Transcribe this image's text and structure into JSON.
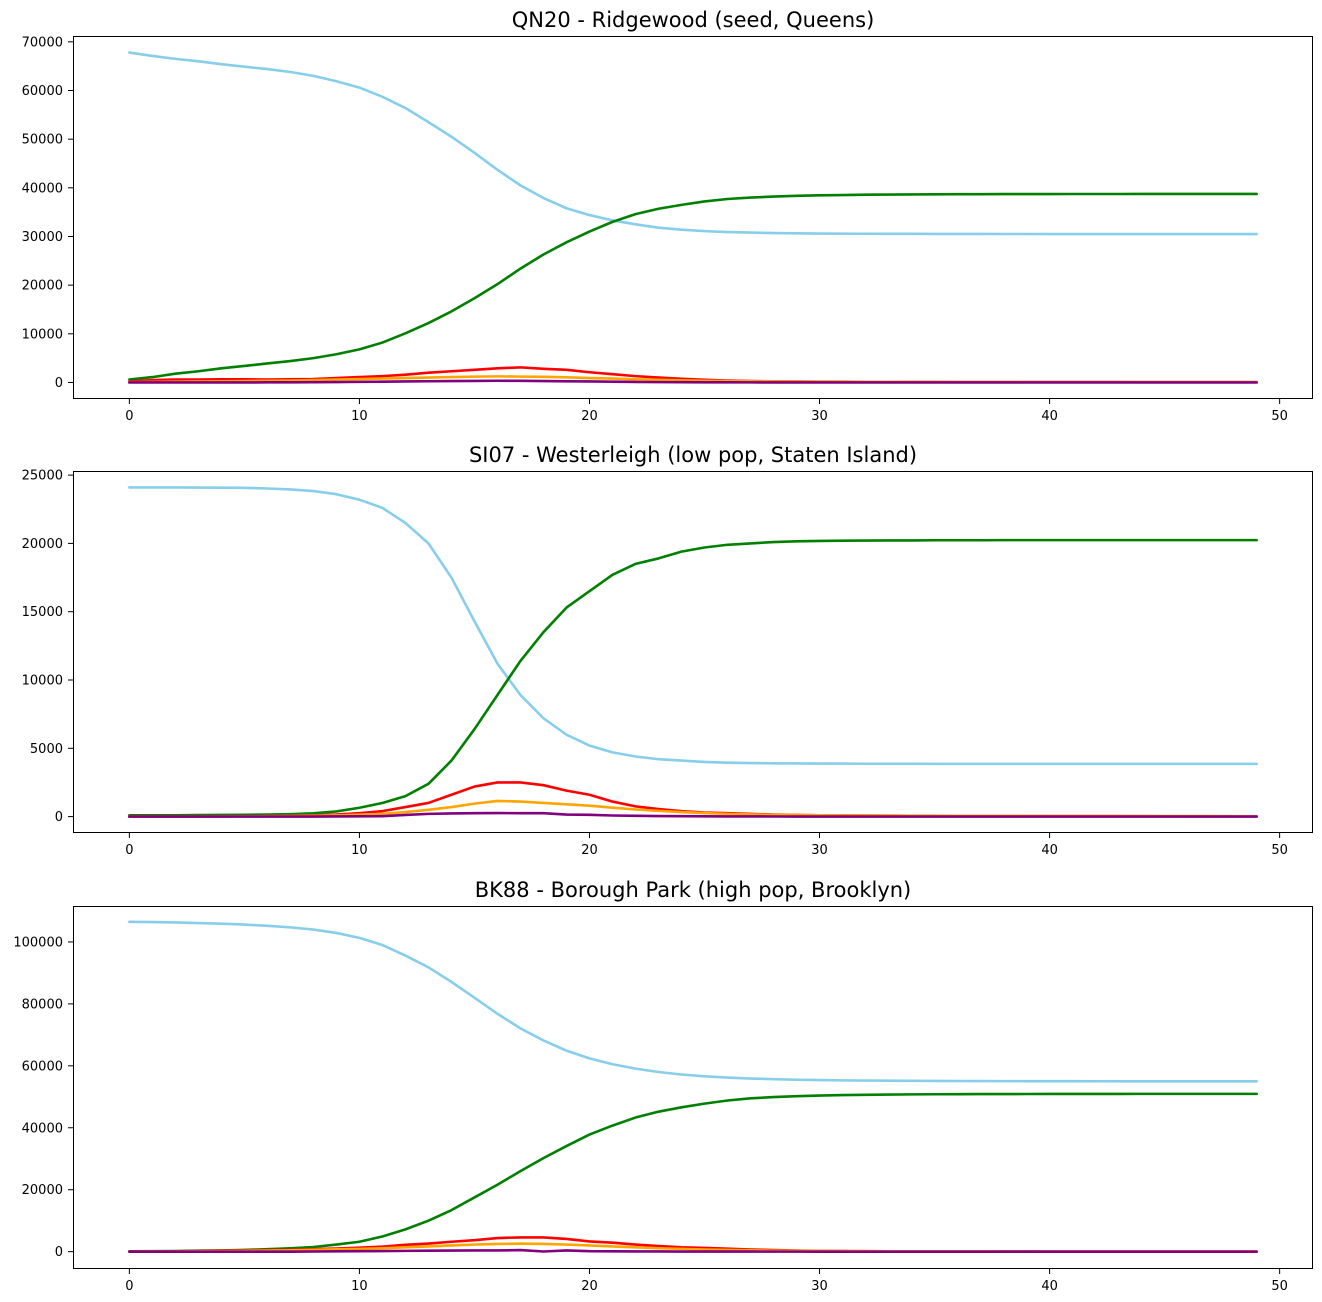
{
  "chart_data": [
    {
      "type": "line",
      "title": "QN20 - Ridgewood (seed, Queens)",
      "xlabel": "",
      "ylabel": "",
      "xlim": [
        -2.45,
        51.45
      ],
      "ylim": [
        -3400,
        71200
      ],
      "xticks": [
        0,
        10,
        20,
        30,
        40,
        50
      ],
      "xtick_labels": [
        "0",
        "10",
        "20",
        "30",
        "40",
        "50"
      ],
      "yticks": [
        0,
        10000,
        20000,
        30000,
        40000,
        50000,
        60000,
        70000
      ],
      "ytick_labels": [
        "0",
        "10000",
        "20000",
        "30000",
        "40000",
        "50000",
        "60000",
        "70000"
      ],
      "grid": false,
      "legend": "none",
      "x": [
        0,
        1,
        2,
        3,
        4,
        5,
        6,
        7,
        8,
        9,
        10,
        11,
        12,
        13,
        14,
        15,
        16,
        17,
        18,
        19,
        20,
        21,
        22,
        23,
        24,
        25,
        26,
        27,
        28,
        29,
        30,
        31,
        32,
        33,
        34,
        35,
        36,
        37,
        38,
        39,
        40,
        41,
        42,
        43,
        44,
        45,
        46,
        47,
        48,
        49
      ],
      "series": [
        {
          "color": "#87ceeb",
          "values": [
            67800,
            67100,
            66500,
            66000,
            65400,
            64900,
            64400,
            63800,
            63000,
            61900,
            60600,
            58700,
            56400,
            53500,
            50500,
            47200,
            43700,
            40500,
            37900,
            35800,
            34400,
            33300,
            32500,
            31800,
            31400,
            31100,
            30900,
            30800,
            30700,
            30650,
            30600,
            30580,
            30560,
            30550,
            30540,
            30530,
            30520,
            30520,
            30510,
            30510,
            30500,
            30500,
            30500,
            30500,
            30500,
            30500,
            30500,
            30500,
            30500,
            30500
          ]
        },
        {
          "color": "#008000",
          "values": [
            600,
            1100,
            1800,
            2300,
            2900,
            3400,
            3900,
            4400,
            5000,
            5800,
            6800,
            8200,
            10100,
            12200,
            14600,
            17300,
            20200,
            23400,
            26300,
            28800,
            31000,
            33000,
            34600,
            35700,
            36500,
            37200,
            37700,
            38000,
            38200,
            38350,
            38450,
            38520,
            38580,
            38620,
            38650,
            38670,
            38690,
            38700,
            38710,
            38720,
            38720,
            38730,
            38730,
            38730,
            38740,
            38740,
            38740,
            38740,
            38740,
            38740
          ]
        },
        {
          "color": "#ff0000",
          "values": [
            200,
            500,
            600,
            600,
            650,
            650,
            600,
            650,
            700,
            900,
            1100,
            1300,
            1600,
            2000,
            2300,
            2600,
            2900,
            3100,
            2800,
            2600,
            2100,
            1700,
            1300,
            1000,
            750,
            550,
            400,
            300,
            250,
            200,
            170,
            150,
            130,
            120,
            110,
            100,
            95,
            90,
            85,
            80,
            78,
            76,
            74,
            72,
            70,
            68,
            66,
            64,
            62,
            60
          ]
        },
        {
          "color": "#ffa500",
          "values": [
            50,
            100,
            150,
            200,
            250,
            300,
            350,
            400,
            500,
            600,
            700,
            800,
            900,
            1000,
            1100,
            1200,
            1250,
            1200,
            1150,
            1050,
            900,
            800,
            650,
            550,
            450,
            350,
            300,
            250,
            200,
            180,
            160,
            150,
            140,
            130,
            120,
            115,
            110,
            105,
            100,
            95,
            90,
            88,
            86,
            84,
            82,
            80,
            78,
            76,
            74,
            72
          ]
        },
        {
          "color": "#800080",
          "values": [
            0,
            0,
            0,
            0,
            0,
            0,
            20,
            30,
            50,
            80,
            120,
            160,
            200,
            250,
            280,
            320,
            350,
            330,
            280,
            240,
            200,
            150,
            100,
            70,
            50,
            30,
            20,
            15,
            10,
            8,
            6,
            5,
            4,
            3,
            2,
            2,
            1,
            1,
            1,
            1,
            0,
            0,
            0,
            0,
            0,
            0,
            0,
            0,
            0,
            0
          ]
        }
      ]
    },
    {
      "type": "line",
      "title": "SI07 - Westerleigh (low pop, Staten Island)",
      "xlabel": "",
      "ylabel": "",
      "xlim": [
        -2.45,
        51.45
      ],
      "ylim": [
        -1200,
        25300
      ],
      "xticks": [
        0,
        10,
        20,
        30,
        40,
        50
      ],
      "xtick_labels": [
        "0",
        "10",
        "20",
        "30",
        "40",
        "50"
      ],
      "yticks": [
        0,
        5000,
        10000,
        15000,
        20000,
        25000
      ],
      "ytick_labels": [
        "0",
        "5000",
        "10000",
        "15000",
        "20000",
        "25000"
      ],
      "grid": false,
      "legend": "none",
      "x": [
        0,
        1,
        2,
        3,
        4,
        5,
        6,
        7,
        8,
        9,
        10,
        11,
        12,
        13,
        14,
        15,
        16,
        17,
        18,
        19,
        20,
        21,
        22,
        23,
        24,
        25,
        26,
        27,
        28,
        29,
        30,
        31,
        32,
        33,
        34,
        35,
        36,
        37,
        38,
        39,
        40,
        41,
        42,
        43,
        44,
        45,
        46,
        47,
        48,
        49
      ],
      "series": [
        {
          "color": "#87ceeb",
          "values": [
            24100,
            24100,
            24100,
            24090,
            24080,
            24070,
            24020,
            23950,
            23830,
            23600,
            23200,
            22600,
            21500,
            20000,
            17500,
            14300,
            11200,
            8900,
            7200,
            6000,
            5200,
            4700,
            4400,
            4200,
            4100,
            4000,
            3950,
            3920,
            3900,
            3890,
            3880,
            3880,
            3870,
            3870,
            3870,
            3860,
            3860,
            3860,
            3860,
            3860,
            3860,
            3860,
            3860,
            3860,
            3860,
            3860,
            3860,
            3860,
            3860,
            3860
          ]
        },
        {
          "color": "#008000",
          "values": [
            100,
            100,
            100,
            110,
            120,
            130,
            150,
            180,
            240,
            380,
            650,
            1000,
            1500,
            2400,
            4100,
            6400,
            8900,
            11400,
            13500,
            15300,
            16500,
            17700,
            18500,
            18900,
            19400,
            19700,
            19900,
            20000,
            20100,
            20150,
            20180,
            20200,
            20210,
            20220,
            20220,
            20230,
            20230,
            20230,
            20240,
            20240,
            20240,
            20240,
            20240,
            20240,
            20240,
            20240,
            20240,
            20240,
            20240,
            20240
          ]
        },
        {
          "color": "#ff0000",
          "values": [
            0,
            0,
            0,
            10,
            20,
            30,
            40,
            60,
            90,
            150,
            250,
            400,
            700,
            1000,
            1600,
            2200,
            2500,
            2500,
            2300,
            1900,
            1600,
            1100,
            750,
            550,
            400,
            300,
            250,
            200,
            150,
            120,
            100,
            90,
            80,
            70,
            60,
            55,
            50,
            45,
            40,
            38,
            36,
            34,
            32,
            30,
            28,
            26,
            24,
            22,
            20,
            18
          ]
        },
        {
          "color": "#ffa500",
          "values": [
            0,
            0,
            0,
            0,
            10,
            20,
            30,
            40,
            60,
            90,
            140,
            200,
            330,
            500,
            700,
            950,
            1150,
            1100,
            1000,
            900,
            800,
            650,
            520,
            420,
            330,
            260,
            200,
            160,
            130,
            110,
            100,
            90,
            80,
            75,
            70,
            65,
            60,
            58,
            56,
            54,
            52,
            50,
            48,
            46,
            44,
            42,
            40,
            38,
            36,
            34
          ]
        },
        {
          "color": "#800080",
          "values": [
            0,
            0,
            0,
            0,
            0,
            0,
            0,
            0,
            0,
            10,
            20,
            30,
            120,
            200,
            230,
            250,
            260,
            250,
            250,
            150,
            130,
            80,
            60,
            40,
            30,
            20,
            15,
            10,
            8,
            6,
            5,
            4,
            3,
            2,
            2,
            1,
            1,
            1,
            1,
            0,
            0,
            0,
            0,
            0,
            0,
            0,
            0,
            0,
            0,
            0
          ]
        }
      ]
    },
    {
      "type": "line",
      "title": "BK88 - Borough Park (high pop, Brooklyn)",
      "xlabel": "",
      "ylabel": "",
      "xlim": [
        -2.45,
        51.45
      ],
      "ylim": [
        -5600,
        111600
      ],
      "xticks": [
        0,
        10,
        20,
        30,
        40,
        50
      ],
      "xtick_labels": [
        "0",
        "10",
        "20",
        "30",
        "40",
        "50"
      ],
      "yticks": [
        0,
        20000,
        40000,
        60000,
        80000,
        100000
      ],
      "ytick_labels": [
        "0",
        "20000",
        "40000",
        "60000",
        "80000",
        "100000"
      ],
      "grid": false,
      "legend": "none",
      "x": [
        0,
        1,
        2,
        3,
        4,
        5,
        6,
        7,
        8,
        9,
        10,
        11,
        12,
        13,
        14,
        15,
        16,
        17,
        18,
        19,
        20,
        21,
        22,
        23,
        24,
        25,
        26,
        27,
        28,
        29,
        30,
        31,
        32,
        33,
        34,
        35,
        36,
        37,
        38,
        39,
        40,
        41,
        42,
        43,
        44,
        45,
        46,
        47,
        48,
        49
      ],
      "series": [
        {
          "color": "#87ceeb",
          "values": [
            106500,
            106400,
            106300,
            106100,
            105900,
            105600,
            105200,
            104700,
            104000,
            102900,
            101300,
            99000,
            95600,
            91800,
            87100,
            82000,
            76800,
            72100,
            68200,
            64900,
            62400,
            60500,
            59100,
            58000,
            57200,
            56600,
            56200,
            55900,
            55700,
            55500,
            55400,
            55300,
            55250,
            55200,
            55150,
            55120,
            55100,
            55080,
            55060,
            55050,
            55040,
            55030,
            55020,
            55010,
            55000,
            55000,
            55000,
            55000,
            55000,
            55000
          ]
        },
        {
          "color": "#008000",
          "values": [
            100,
            150,
            200,
            300,
            400,
            550,
            800,
            1100,
            1500,
            2300,
            3200,
            4900,
            7200,
            10000,
            13400,
            17500,
            21600,
            26000,
            30200,
            34100,
            37800,
            40700,
            43300,
            45200,
            46600,
            47800,
            48800,
            49500,
            49900,
            50200,
            50400,
            50550,
            50650,
            50720,
            50780,
            50820,
            50850,
            50870,
            50890,
            50900,
            50910,
            50920,
            50930,
            50930,
            50940,
            50940,
            50940,
            50940,
            50940,
            50940
          ]
        },
        {
          "color": "#ff0000",
          "values": [
            0,
            50,
            100,
            200,
            300,
            400,
            500,
            600,
            800,
            1000,
            1300,
            1600,
            2200,
            2600,
            3200,
            3700,
            4400,
            4600,
            4600,
            4100,
            3300,
            2900,
            2300,
            1800,
            1400,
            1200,
            950,
            700,
            500,
            350,
            250,
            200,
            150,
            120,
            100,
            90,
            80,
            70,
            60,
            55,
            50,
            45,
            40,
            38,
            36,
            34,
            32,
            30,
            28,
            26
          ]
        },
        {
          "color": "#ffa500",
          "values": [
            0,
            20,
            50,
            100,
            150,
            250,
            350,
            450,
            600,
            750,
            900,
            1100,
            1400,
            1700,
            2000,
            2300,
            2500,
            2600,
            2500,
            2300,
            2000,
            1700,
            1400,
            1100,
            900,
            700,
            550,
            420,
            330,
            260,
            200,
            170,
            150,
            130,
            120,
            110,
            100,
            95,
            90,
            85,
            80,
            78,
            76,
            74,
            72,
            70,
            68,
            66,
            64,
            62
          ]
        },
        {
          "color": "#800080",
          "values": [
            0,
            0,
            0,
            0,
            0,
            0,
            0,
            0,
            50,
            100,
            150,
            200,
            250,
            300,
            350,
            400,
            400,
            500,
            50,
            400,
            150,
            100,
            80,
            60,
            40,
            30,
            20,
            15,
            10,
            8,
            6,
            5,
            4,
            3,
            2,
            2,
            1,
            1,
            1,
            1,
            0,
            0,
            0,
            0,
            0,
            0,
            0,
            0,
            0,
            0
          ]
        }
      ]
    }
  ]
}
